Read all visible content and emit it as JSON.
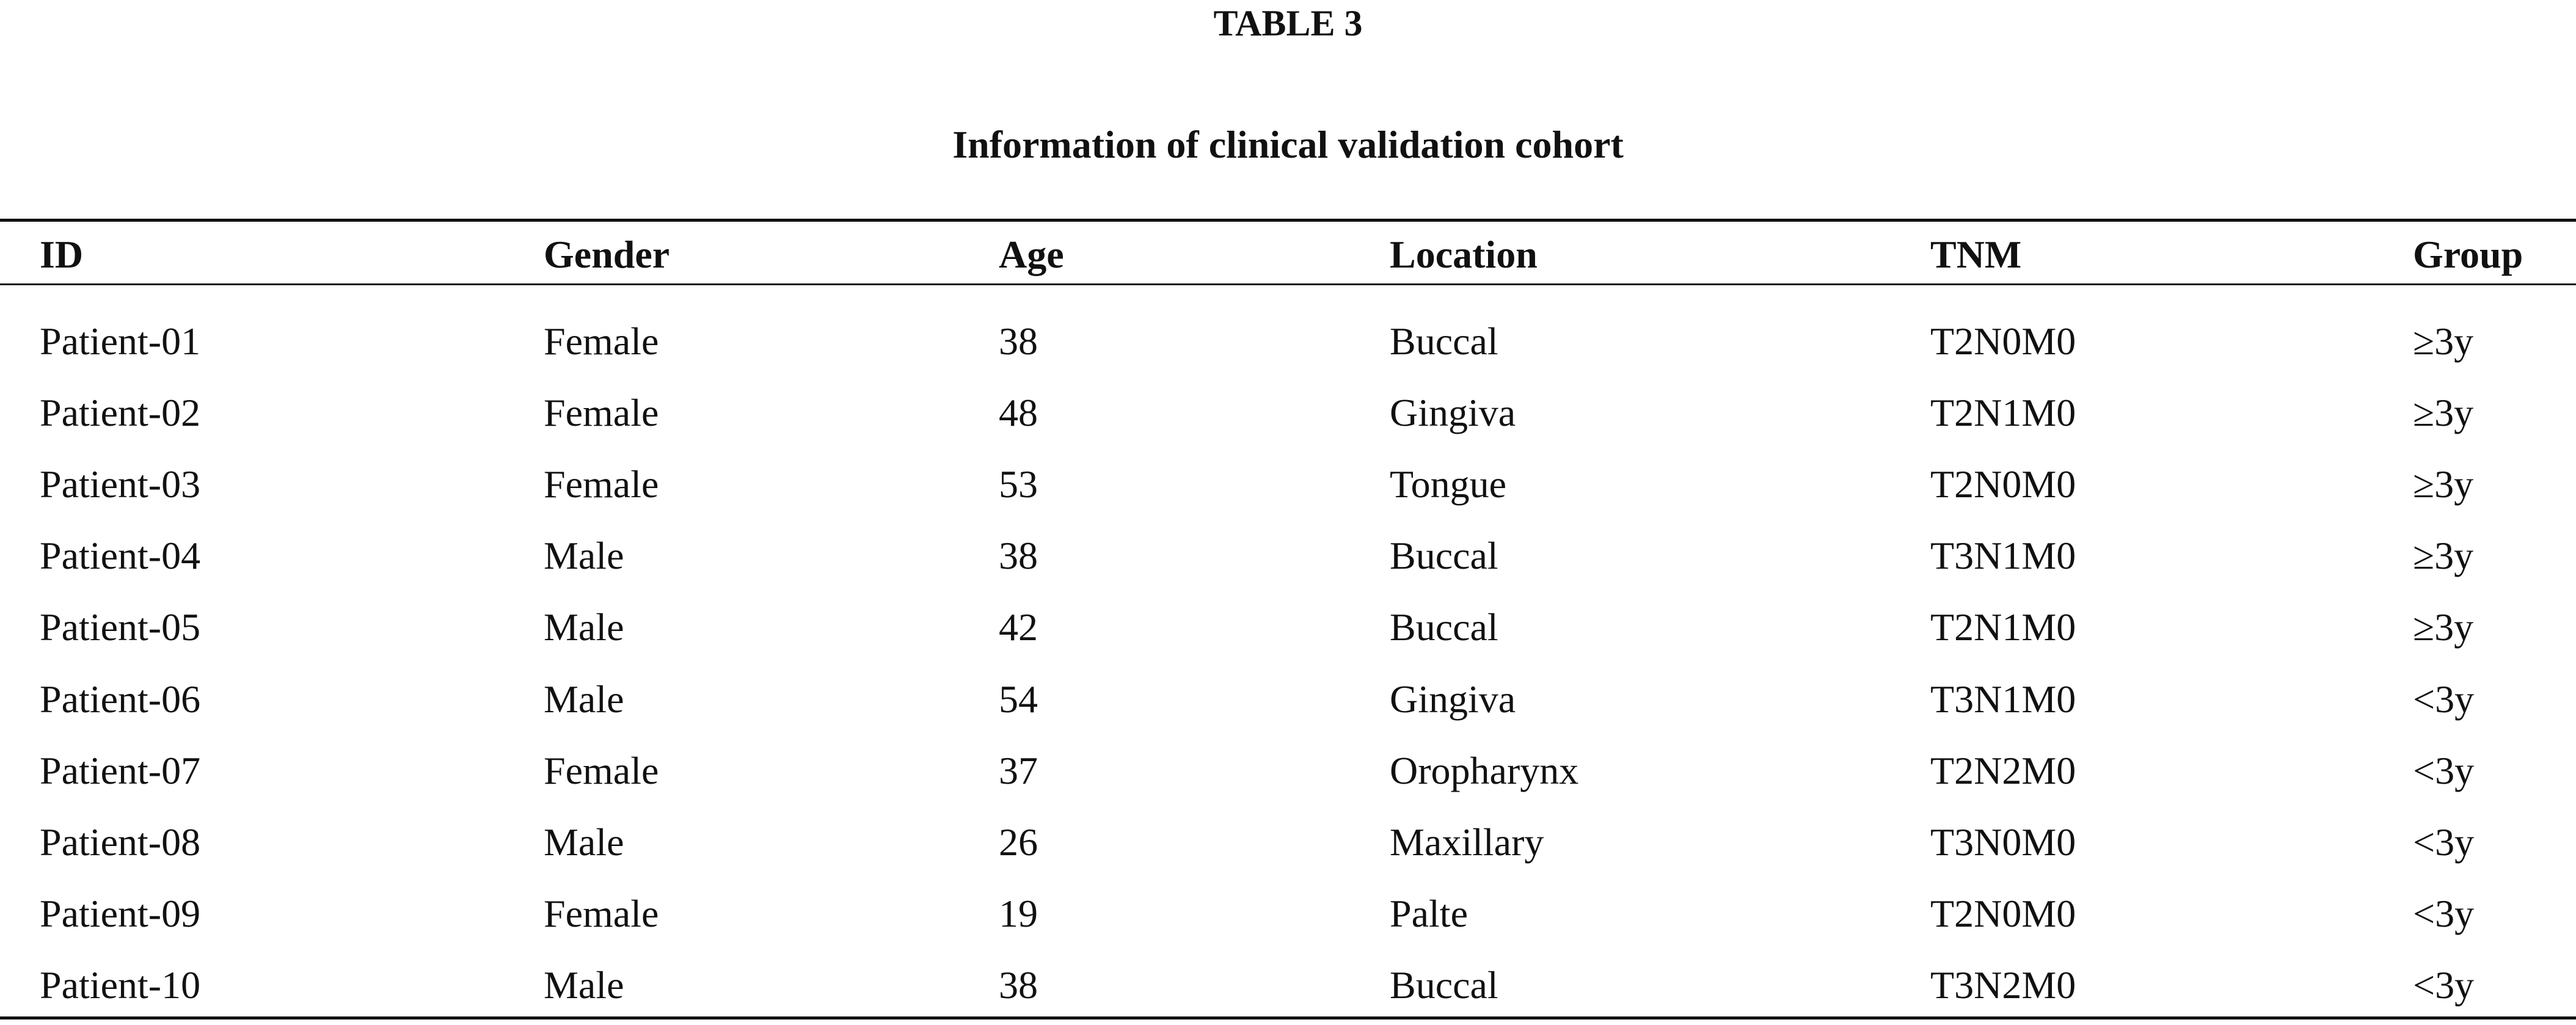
{
  "header": {
    "label": "TABLE 3",
    "title": "Information of clinical validation cohort"
  },
  "table": {
    "columns": [
      "ID",
      "Gender",
      "Age",
      "Location",
      "TNM",
      "Group"
    ],
    "rows": [
      [
        "Patient-01",
        "Female",
        38,
        "Buccal",
        "T2N0M0",
        "≥3y"
      ],
      [
        "Patient-02",
        "Female",
        48,
        "Gingiva",
        "T2N1M0",
        "≥3y"
      ],
      [
        "Patient-03",
        "Female",
        53,
        "Tongue",
        "T2N0M0",
        "≥3y"
      ],
      [
        "Patient-04",
        "Male",
        38,
        "Buccal",
        "T3N1M0",
        "≥3y"
      ],
      [
        "Patient-05",
        "Male",
        42,
        "Buccal",
        "T2N1M0",
        "≥3y"
      ],
      [
        "Patient-06",
        "Male",
        54,
        "Gingiva",
        "T3N1M0",
        "<3y"
      ],
      [
        "Patient-07",
        "Female",
        37,
        "Oropharynx",
        "T2N2M0",
        "<3y"
      ],
      [
        "Patient-08",
        "Male",
        26,
        "Maxillary",
        "T3N0M0",
        "<3y"
      ],
      [
        "Patient-09",
        "Female",
        19,
        "Palte",
        "T2N0M0",
        "<3y"
      ],
      [
        "Patient-10",
        "Male",
        38,
        "Buccal",
        "T3N2M0",
        "<3y"
      ]
    ]
  }
}
